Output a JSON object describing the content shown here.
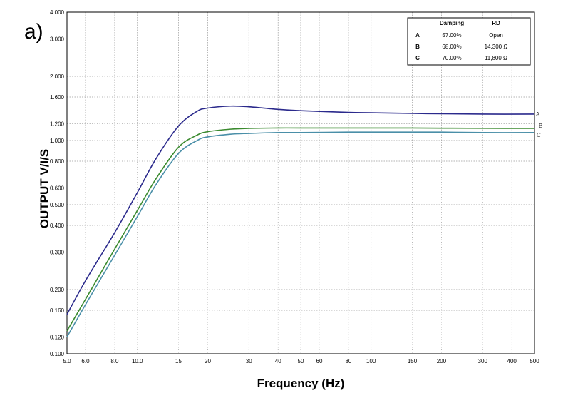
{
  "panel_label": "a)",
  "chart_data": {
    "type": "line",
    "xlabel": "Frequency (Hz)",
    "ylabel": "OUTPUT V/I/S",
    "xscale": "log",
    "yscale": "log",
    "xlim": [
      5,
      500
    ],
    "ylim": [
      0.1,
      4.0
    ],
    "grid": true,
    "x_ticks": [
      5,
      6,
      8,
      10,
      15,
      20,
      30,
      40,
      50,
      60,
      80,
      100,
      150,
      200,
      300,
      400,
      500
    ],
    "x_tick_labels": [
      "5.0",
      "6.0",
      "8.0",
      "10.0",
      "15",
      "20",
      "30",
      "40",
      "50",
      "60",
      "80",
      "100",
      "150",
      "200",
      "300",
      "400",
      "500"
    ],
    "y_ticks": [
      0.1,
      0.12,
      0.16,
      0.2,
      0.3,
      0.4,
      0.5,
      0.6,
      0.8,
      1.0,
      1.2,
      1.6,
      2.0,
      3.0,
      4.0
    ],
    "y_tick_labels": [
      "0.100",
      "0.120",
      "0.160",
      "0.200",
      "0.300",
      "0.400",
      "0.500",
      "0.600",
      "0.800",
      "1.000",
      "1.200",
      "1.600",
      "2.000",
      "3.000",
      "4.000"
    ],
    "legend": {
      "position": "top-right",
      "headers": [
        "Damping",
        "RD"
      ],
      "rows": [
        {
          "id": "A",
          "damping": "57.00%",
          "rd": "Open"
        },
        {
          "id": "B",
          "damping": "68.00%",
          "rd": "14,300 Ω"
        },
        {
          "id": "C",
          "damping": "70.00%",
          "rd": "11,800 Ω"
        }
      ]
    },
    "series": [
      {
        "name": "A",
        "color": "#2b2a8c",
        "x": [
          5,
          6,
          8,
          10,
          12,
          15,
          18,
          20,
          25,
          30,
          40,
          50,
          80,
          100,
          150,
          200,
          300,
          500
        ],
        "y": [
          0.153,
          0.22,
          0.37,
          0.57,
          0.82,
          1.17,
          1.37,
          1.42,
          1.45,
          1.44,
          1.4,
          1.38,
          1.355,
          1.35,
          1.34,
          1.335,
          1.33,
          1.33
        ]
      },
      {
        "name": "B",
        "color": "#3a8a2e",
        "x": [
          5,
          6,
          8,
          10,
          12,
          15,
          18,
          20,
          25,
          30,
          40,
          50,
          80,
          100,
          150,
          200,
          300,
          500
        ],
        "y": [
          0.128,
          0.18,
          0.31,
          0.47,
          0.66,
          0.93,
          1.06,
          1.1,
          1.13,
          1.14,
          1.145,
          1.145,
          1.145,
          1.145,
          1.145,
          1.143,
          1.141,
          1.14
        ]
      },
      {
        "name": "C",
        "color": "#4a8fa8",
        "x": [
          5,
          6,
          8,
          10,
          12,
          15,
          18,
          20,
          25,
          30,
          40,
          50,
          80,
          100,
          150,
          200,
          300,
          500
        ],
        "y": [
          0.12,
          0.17,
          0.29,
          0.44,
          0.62,
          0.87,
          1.0,
          1.04,
          1.07,
          1.08,
          1.09,
          1.09,
          1.095,
          1.095,
          1.095,
          1.095,
          1.09,
          1.09
        ]
      }
    ]
  }
}
